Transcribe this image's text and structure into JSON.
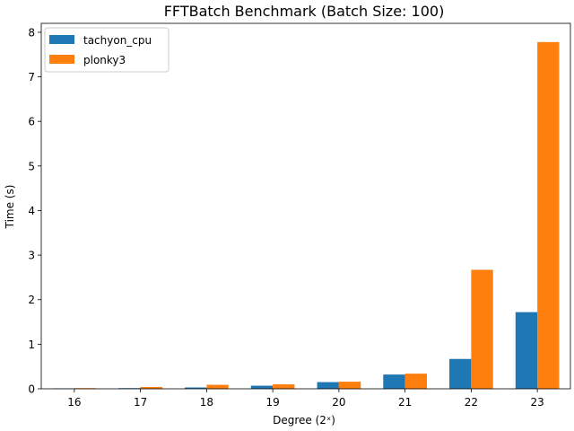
{
  "chart_data": {
    "type": "bar",
    "title": "FFTBatch Benchmark (Batch Size: 100)",
    "xlabel": "Degree (2ˣ)",
    "ylabel": "Time (s)",
    "categories": [
      "16",
      "17",
      "18",
      "19",
      "20",
      "21",
      "22",
      "23"
    ],
    "ylim": [
      0,
      8.2
    ],
    "yticks": [
      0,
      1,
      2,
      3,
      4,
      5,
      6,
      7,
      8
    ],
    "grid": false,
    "legend_position": "top-left",
    "series": [
      {
        "name": "tachyon_cpu",
        "color": "#1f77b4",
        "values": [
          0.01,
          0.015,
          0.03,
          0.07,
          0.15,
          0.32,
          0.67,
          1.72
        ]
      },
      {
        "name": "plonky3",
        "color": "#ff7f0e",
        "values": [
          0.015,
          0.04,
          0.09,
          0.1,
          0.16,
          0.34,
          2.67,
          7.78
        ]
      }
    ]
  }
}
